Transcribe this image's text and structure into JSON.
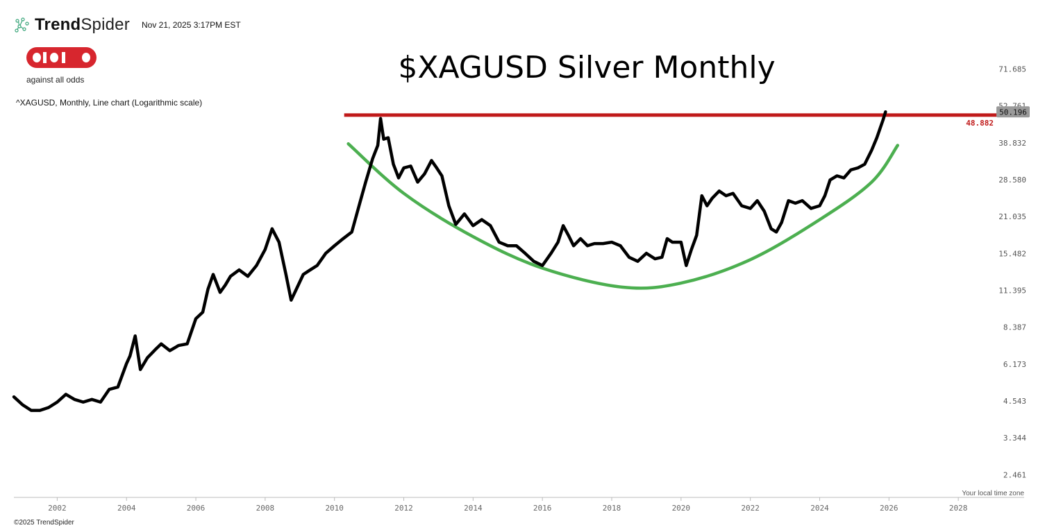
{
  "header": {
    "brand_bold": "Trend",
    "brand_rest": "Spider",
    "timestamp": "Nov 21, 2025 3:17PM EST",
    "aao_tagline": "against all odds",
    "symbol_line": "^XAGUSD, Monthly, Line chart (Logarithmic scale)"
  },
  "footer": {
    "timezone": "Your local time zone",
    "copyright": "©2025 TrendSpider"
  },
  "colors": {
    "price_line": "#000000",
    "resistance": "#c01a1a",
    "cup_curve": "#4caf50",
    "aao_red": "#d7262e"
  },
  "chart_data": {
    "type": "line",
    "title": "$XAGUSD Silver Monthly",
    "yscale": "log",
    "ylim": [
      2.05,
      90
    ],
    "xlim": [
      2000.75,
      2029.5
    ],
    "y_ticks": [
      "71.685",
      "52.761",
      "38.832",
      "28.580",
      "21.035",
      "15.482",
      "11.395",
      "8.387",
      "6.173",
      "4.543",
      "3.344",
      "2.461"
    ],
    "x_ticks": [
      "2002",
      "2004",
      "2006",
      "2008",
      "2010",
      "2012",
      "2014",
      "2016",
      "2018",
      "2020",
      "2022",
      "2024",
      "2026",
      "2028"
    ],
    "last_price": "50.196",
    "resistance_level": "48.882",
    "series": [
      {
        "x": [
          2000.75,
          2001.0,
          2001.25,
          2001.5,
          2001.75,
          2002.0,
          2002.25,
          2002.5,
          2002.75,
          2003.0,
          2003.25,
          2003.5,
          2003.75,
          2004.0,
          2004.1,
          2004.25,
          2004.4,
          2004.6,
          2004.85,
          2005.0,
          2005.25,
          2005.5,
          2005.75,
          2006.0,
          2006.2,
          2006.35,
          2006.5,
          2006.7,
          2006.85,
          2007.0,
          2007.25,
          2007.5,
          2007.75,
          2008.0,
          2008.2,
          2008.4,
          2008.6,
          2008.75,
          2008.9,
          2009.1,
          2009.3,
          2009.5,
          2009.75,
          2010.0,
          2010.25,
          2010.5,
          2010.75,
          2010.9,
          2011.1,
          2011.25,
          2011.33,
          2011.42,
          2011.55,
          2011.7,
          2011.85,
          2012.0,
          2012.2,
          2012.4,
          2012.6,
          2012.8,
          2012.95,
          2013.1,
          2013.3,
          2013.5,
          2013.75,
          2014.0,
          2014.25,
          2014.5,
          2014.75,
          2015.0,
          2015.25,
          2015.5,
          2015.75,
          2016.0,
          2016.25,
          2016.45,
          2016.6,
          2016.75,
          2016.9,
          2017.1,
          2017.3,
          2017.5,
          2017.75,
          2018.0,
          2018.25,
          2018.5,
          2018.75,
          2019.0,
          2019.25,
          2019.45,
          2019.6,
          2019.75,
          2020.0,
          2020.15,
          2020.3,
          2020.45,
          2020.6,
          2020.75,
          2020.9,
          2021.1,
          2021.3,
          2021.5,
          2021.75,
          2022.0,
          2022.2,
          2022.4,
          2022.6,
          2022.75,
          2022.9,
          2023.1,
          2023.3,
          2023.5,
          2023.75,
          2024.0,
          2024.15,
          2024.3,
          2024.5,
          2024.7,
          2024.9,
          2025.1,
          2025.3,
          2025.5,
          2025.65,
          2025.75,
          2025.83,
          2025.9
        ],
        "y": [
          4.7,
          4.4,
          4.2,
          4.2,
          4.3,
          4.5,
          4.8,
          4.6,
          4.5,
          4.6,
          4.5,
          5.0,
          5.1,
          6.2,
          6.6,
          7.8,
          5.9,
          6.5,
          7.0,
          7.3,
          6.9,
          7.2,
          7.3,
          9.0,
          9.5,
          11.5,
          13.0,
          11.2,
          11.9,
          12.8,
          13.5,
          12.8,
          14.0,
          16.0,
          19.0,
          17.0,
          13.0,
          10.5,
          11.5,
          13.0,
          13.5,
          14.0,
          15.5,
          16.5,
          17.5,
          18.5,
          24.0,
          28.0,
          34.0,
          38.0,
          47.5,
          40.0,
          40.5,
          32.5,
          29.0,
          31.5,
          32.0,
          28.0,
          30.0,
          33.5,
          31.5,
          29.5,
          23.0,
          19.7,
          21.5,
          19.5,
          20.5,
          19.5,
          17.0,
          16.5,
          16.5,
          15.5,
          14.5,
          14.0,
          15.5,
          17.0,
          19.5,
          18.0,
          16.5,
          17.5,
          16.5,
          16.8,
          16.8,
          17.0,
          16.5,
          15.0,
          14.5,
          15.5,
          14.8,
          15.0,
          17.5,
          17.0,
          17.0,
          14.0,
          16.0,
          18.0,
          25.0,
          23.0,
          24.5,
          26.0,
          25.0,
          25.5,
          23.0,
          22.5,
          24.0,
          22.0,
          19.0,
          18.5,
          20.0,
          24.0,
          23.5,
          24.0,
          22.5,
          23.0,
          25.0,
          28.5,
          29.5,
          29.0,
          31.0,
          31.5,
          32.5,
          36.5,
          40.5,
          44.0,
          47.0,
          50.196
        ]
      }
    ],
    "cup_curve": {
      "x": [
        2010.4,
        2012.0,
        2014.0,
        2016.0,
        2018.3,
        2020.0,
        2022.0,
        2024.0,
        2025.5,
        2026.25
      ],
      "y": [
        38.5,
        25.5,
        17.8,
        13.7,
        11.7,
        12.1,
        14.7,
        20.5,
        28.0,
        38.0
      ]
    }
  }
}
